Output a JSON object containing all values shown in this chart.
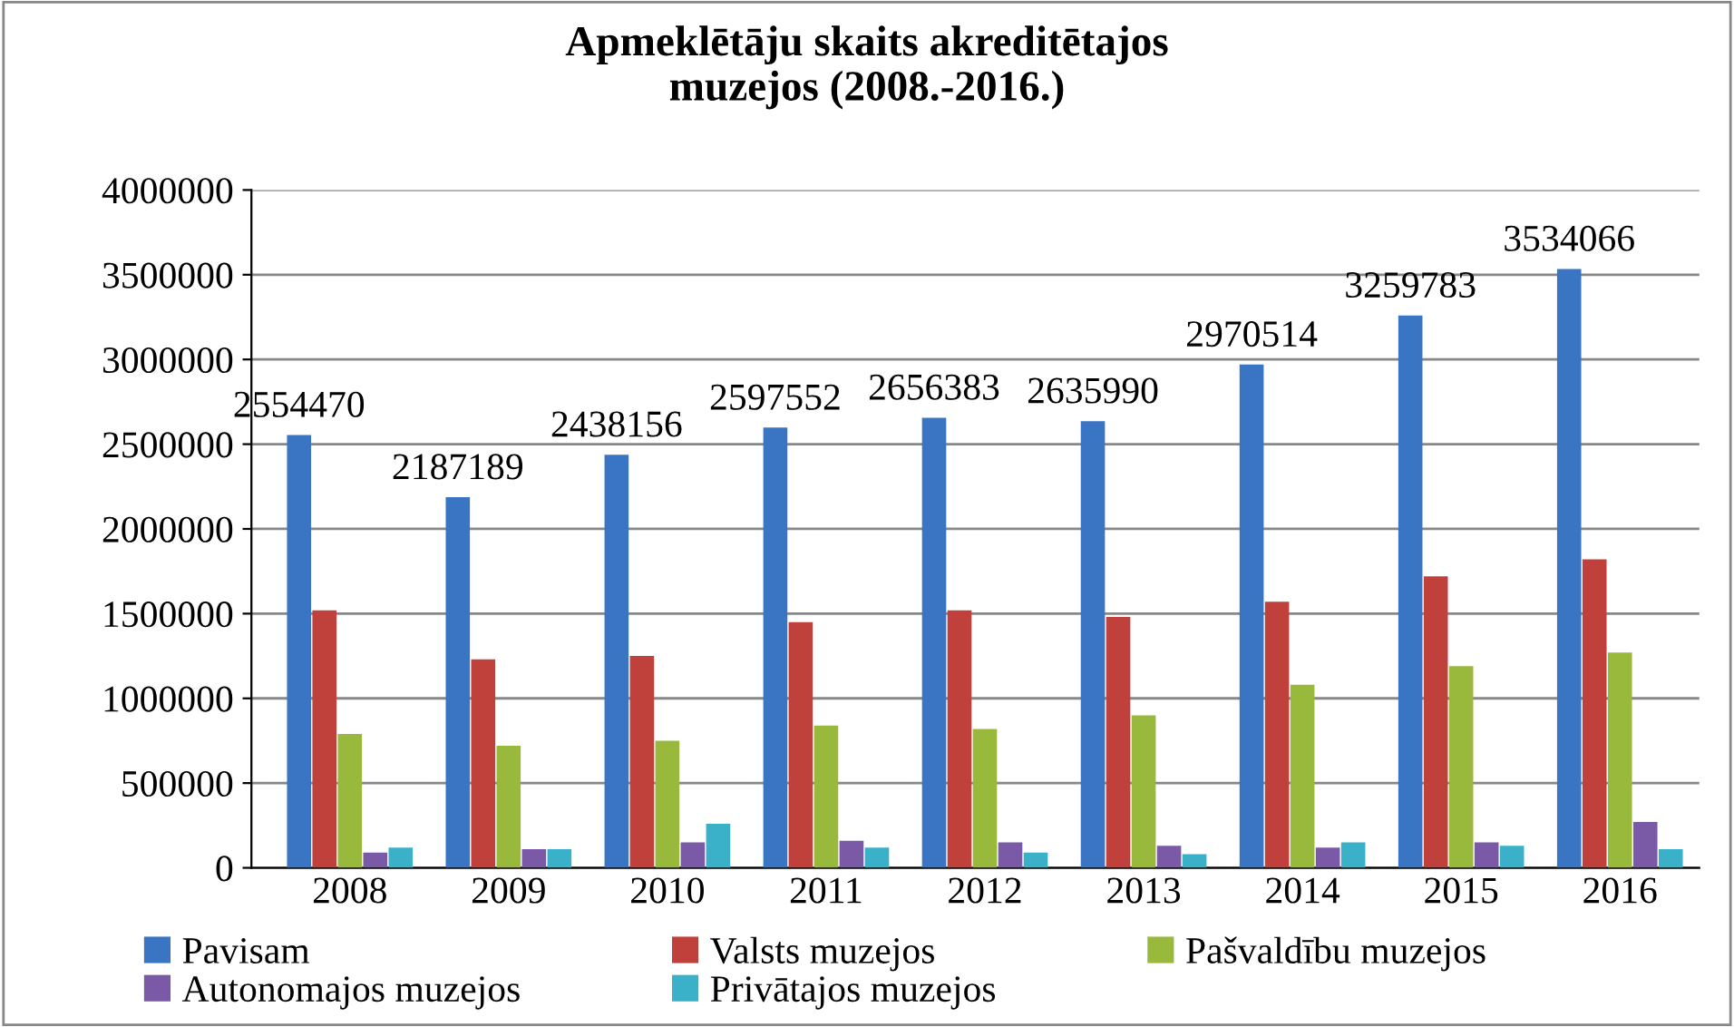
{
  "chart_data": {
    "type": "bar",
    "title": "Apmeklētāju skaits akreditētajos\nmuzejos (2008.-2016.)",
    "categories": [
      "2008",
      "2009",
      "2010",
      "2011",
      "2012",
      "2013",
      "2014",
      "2015",
      "2016"
    ],
    "series": [
      {
        "name": "Pavisam",
        "color": "#3a75c4",
        "values": [
          2554470,
          2187189,
          2438156,
          2597552,
          2656383,
          2635990,
          2970514,
          3259783,
          3534066
        ],
        "value_labels": [
          "2554470",
          "2187189",
          "2438156",
          "2597552",
          "2656383",
          "2635990",
          "2970514",
          "3259783",
          "3534066"
        ]
      },
      {
        "name": "Valsts muzejos",
        "color": "#c0403c",
        "values": [
          1520000,
          1230000,
          1250000,
          1450000,
          1520000,
          1480000,
          1570000,
          1720000,
          1820000
        ]
      },
      {
        "name": "Pašvaldību muzejos",
        "color": "#98b93c",
        "values": [
          790000,
          720000,
          750000,
          840000,
          820000,
          900000,
          1080000,
          1190000,
          1270000
        ]
      },
      {
        "name": "Autonomajos muzejos",
        "color": "#7a5aa6",
        "values": [
          90000,
          110000,
          150000,
          160000,
          150000,
          130000,
          120000,
          150000,
          270000
        ]
      },
      {
        "name": "Privātajos muzejos",
        "color": "#3ab0c9",
        "values": [
          120000,
          110000,
          260000,
          120000,
          90000,
          80000,
          150000,
          130000,
          110000
        ]
      }
    ],
    "ylim": [
      0,
      4000000
    ],
    "yticks": [
      0,
      500000,
      1000000,
      1500000,
      2000000,
      2500000,
      3000000,
      3500000,
      4000000
    ],
    "grid": "y",
    "legend": "bottom"
  }
}
